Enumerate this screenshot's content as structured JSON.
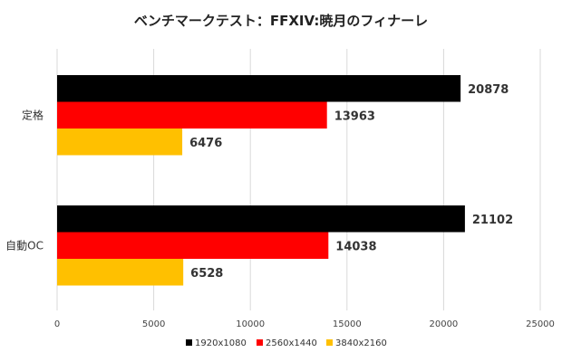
{
  "chart_data": {
    "type": "bar",
    "orientation": "horizontal",
    "title": "ベンチマークテスト：FFXIV:暁月のフィナーレ",
    "categories": [
      "定格",
      "自動OC"
    ],
    "series": [
      {
        "name": "1920x1080",
        "color": "#000000",
        "values": [
          20878,
          21102
        ]
      },
      {
        "name": "2560x1440",
        "color": "#ff0000",
        "values": [
          13963,
          14038
        ]
      },
      {
        "name": "3840x2160",
        "color": "#ffc000",
        "values": [
          6476,
          6528
        ]
      }
    ],
    "xlim": [
      0,
      25000
    ],
    "xticks": [
      0,
      5000,
      10000,
      15000,
      20000,
      25000
    ],
    "grid": true,
    "legend_position": "bottom",
    "data_labels": true
  }
}
